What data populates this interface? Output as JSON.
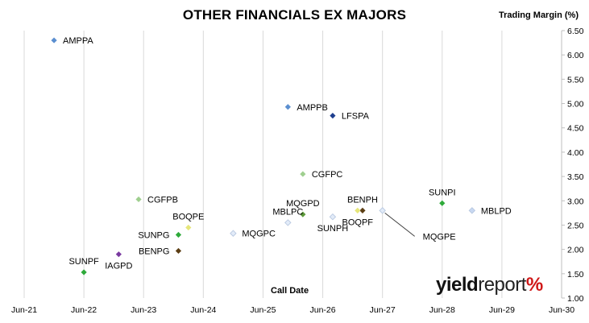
{
  "chart_data": {
    "type": "scatter",
    "title": "OTHER FINANCIALS EX MAJORS",
    "xlabel": "Call Date",
    "ylabel": "Trading Margin (%)",
    "x_ticks": [
      "Jun-21",
      "Jun-22",
      "Jun-23",
      "Jun-24",
      "Jun-25",
      "Jun-26",
      "Jun-27",
      "Jun-28",
      "Jun-29",
      "Jun-30"
    ],
    "xlim": [
      "2021-06",
      "2030-06"
    ],
    "y_ticks": [
      "1.00",
      "1.50",
      "2.00",
      "2.50",
      "3.00",
      "3.50",
      "4.00",
      "4.50",
      "5.00",
      "5.50",
      "6.00",
      "6.50"
    ],
    "ylim": [
      1.0,
      6.5
    ],
    "y_axis_side": "right",
    "grid": {
      "vertical": true,
      "horizontal": false
    },
    "points": [
      {
        "label": "AMPPA",
        "x": "2021-12",
        "y": 6.3,
        "color": "#5b8fd0",
        "label_side": "right"
      },
      {
        "label": "AMPPB",
        "x": "2025-11",
        "y": 4.93,
        "color": "#5b8fd0",
        "label_side": "right"
      },
      {
        "label": "LFSPA",
        "x": "2026-08",
        "y": 4.75,
        "color": "#1f3f8f",
        "label_side": "right"
      },
      {
        "label": "CGFPC",
        "x": "2026-02",
        "y": 3.55,
        "color": "#9fcf8f",
        "label_side": "right"
      },
      {
        "label": "CGFPB",
        "x": "2023-05",
        "y": 3.03,
        "color": "#9fcf8f",
        "label_side": "right"
      },
      {
        "label": "SUNPI",
        "x": "2028-06",
        "y": 2.95,
        "color": "#2eaa3a",
        "label_side": "above"
      },
      {
        "label": "MBLPD",
        "x": "2028-12",
        "y": 2.8,
        "color": "#c8d8f2",
        "label_side": "right"
      },
      {
        "label": "BENPH",
        "x": "2027-02",
        "y": 2.8,
        "color": "#5c3e14",
        "label_side": "above"
      },
      {
        "label": "BOQPF",
        "x": "2027-01",
        "y": 2.8,
        "color": "#e6e67a",
        "label_side": "below"
      },
      {
        "label": "MQGPE",
        "x": "2027-06",
        "y": 2.8,
        "color": "#e2ebf8",
        "label_side": "leader"
      },
      {
        "label": "MQGPD",
        "x": "2026-02",
        "y": 2.72,
        "color": "#5d9a3a",
        "label_side": "above"
      },
      {
        "label": "SUNPH",
        "x": "2026-08",
        "y": 2.67,
        "color": "#e2ebf8",
        "label_side": "below"
      },
      {
        "label": "MBLPC",
        "x": "2025-11",
        "y": 2.55,
        "color": "#e2ebf8",
        "label_side": "above"
      },
      {
        "label": "BOQPE",
        "x": "2024-03",
        "y": 2.45,
        "color": "#e6e67a",
        "label_side": "above"
      },
      {
        "label": "MQGPC",
        "x": "2024-12",
        "y": 2.33,
        "color": "#e2ebf8",
        "label_side": "right"
      },
      {
        "label": "SUNPG",
        "x": "2024-01",
        "y": 2.3,
        "color": "#2eaa3a",
        "label_side": "left"
      },
      {
        "label": "BENPG",
        "x": "2024-01",
        "y": 1.97,
        "color": "#5c3e14",
        "label_side": "left"
      },
      {
        "label": "IAGPD",
        "x": "2023-01",
        "y": 1.9,
        "color": "#7a3aa0",
        "label_side": "below"
      },
      {
        "label": "SUNPF",
        "x": "2022-06",
        "y": 1.53,
        "color": "#2eaa3a",
        "label_side": "above"
      }
    ]
  },
  "branding": {
    "logo_part1": "yield",
    "logo_part2": "report",
    "logo_part3": "%"
  }
}
